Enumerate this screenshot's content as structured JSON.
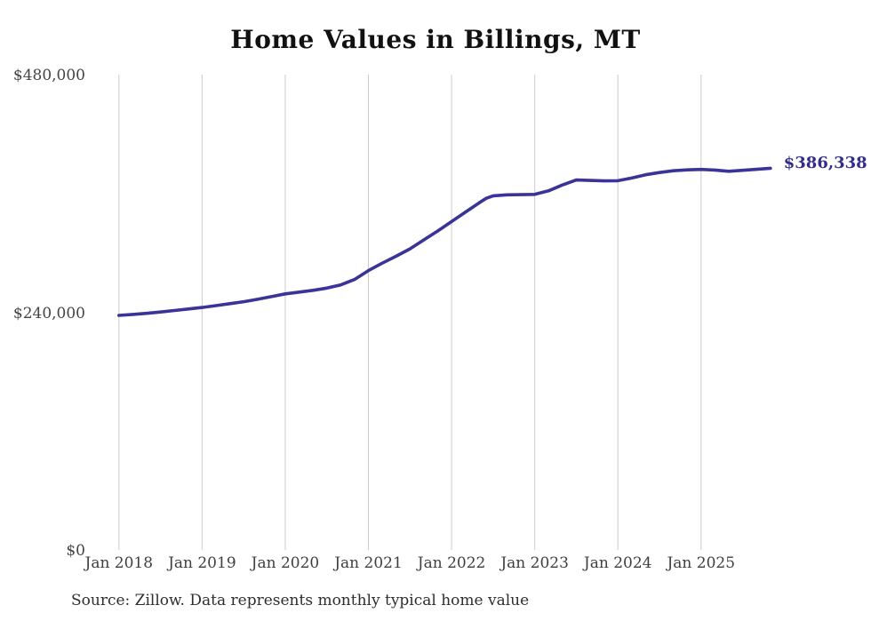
{
  "title": "Home Values in Billings, MT",
  "source_note": "Source: Zillow. Data represents monthly typical home value",
  "colors": {
    "line": "#3a3398",
    "grid": "#cccccc",
    "title_text": "#111111",
    "axis_text": "#3f3f3f",
    "end_label_text": "#322d8c",
    "background": "#ffffff"
  },
  "chart_data": {
    "type": "line",
    "title": "Home Values in Billings, MT",
    "xlabel": "",
    "ylabel": "",
    "ylim": [
      0,
      480000
    ],
    "grid": "vertical-only",
    "legend": "none",
    "final_value": 386338,
    "final_value_label": "$386,338",
    "y_ticks": [
      {
        "label": "$0",
        "value": 0
      },
      {
        "label": "$240,000",
        "value": 240000
      },
      {
        "label": "$480,000",
        "value": 480000
      }
    ],
    "x_tick_labels": [
      "Jan 2018",
      "Jan 2019",
      "Jan 2020",
      "Jan 2021",
      "Jan 2022",
      "Jan 2023",
      "Jan 2024",
      "Jan 2025"
    ],
    "points": [
      {
        "date": "2018-01",
        "value": 237800
      },
      {
        "date": "2018-03",
        "value": 238700
      },
      {
        "date": "2018-05",
        "value": 239800
      },
      {
        "date": "2018-07",
        "value": 241200
      },
      {
        "date": "2018-09",
        "value": 242700
      },
      {
        "date": "2018-11",
        "value": 244200
      },
      {
        "date": "2019-01",
        "value": 245700
      },
      {
        "date": "2019-03",
        "value": 247600
      },
      {
        "date": "2019-05",
        "value": 249600
      },
      {
        "date": "2019-07",
        "value": 251600
      },
      {
        "date": "2019-09",
        "value": 254000
      },
      {
        "date": "2019-11",
        "value": 256700
      },
      {
        "date": "2020-01",
        "value": 259500
      },
      {
        "date": "2020-03",
        "value": 261300
      },
      {
        "date": "2020-05",
        "value": 263100
      },
      {
        "date": "2020-07",
        "value": 265300
      },
      {
        "date": "2020-09",
        "value": 268500
      },
      {
        "date": "2020-11",
        "value": 274000
      },
      {
        "date": "2021-01",
        "value": 283000
      },
      {
        "date": "2021-03",
        "value": 290500
      },
      {
        "date": "2021-05",
        "value": 297500
      },
      {
        "date": "2021-07",
        "value": 305000
      },
      {
        "date": "2021-09",
        "value": 314000
      },
      {
        "date": "2021-11",
        "value": 323000
      },
      {
        "date": "2022-01",
        "value": 332500
      },
      {
        "date": "2022-03",
        "value": 342000
      },
      {
        "date": "2022-05",
        "value": 351500
      },
      {
        "date": "2022-06",
        "value": 356000
      },
      {
        "date": "2022-07",
        "value": 358500
      },
      {
        "date": "2022-09",
        "value": 359500
      },
      {
        "date": "2022-11",
        "value": 359700
      },
      {
        "date": "2023-01",
        "value": 360000
      },
      {
        "date": "2023-03",
        "value": 363500
      },
      {
        "date": "2023-05",
        "value": 369500
      },
      {
        "date": "2023-07",
        "value": 374500
      },
      {
        "date": "2023-09",
        "value": 374000
      },
      {
        "date": "2023-11",
        "value": 373600
      },
      {
        "date": "2024-01",
        "value": 373800
      },
      {
        "date": "2024-03",
        "value": 376500
      },
      {
        "date": "2024-05",
        "value": 379800
      },
      {
        "date": "2024-07",
        "value": 382000
      },
      {
        "date": "2024-09",
        "value": 383800
      },
      {
        "date": "2024-11",
        "value": 384700
      },
      {
        "date": "2025-01",
        "value": 385200
      },
      {
        "date": "2025-03",
        "value": 384500
      },
      {
        "date": "2025-05",
        "value": 383300
      },
      {
        "date": "2025-07",
        "value": 384300
      },
      {
        "date": "2025-09",
        "value": 385300
      },
      {
        "date": "2025-11",
        "value": 386338
      }
    ]
  }
}
